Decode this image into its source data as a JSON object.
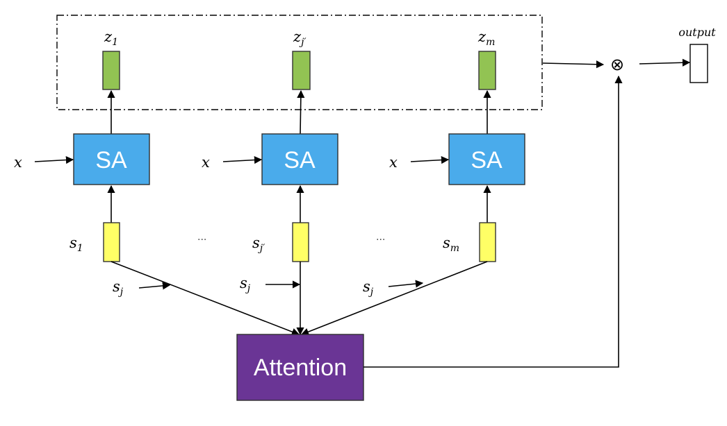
{
  "colors": {
    "sa_box": "#4AABEB",
    "sa_border": "#2F2F2F",
    "z_box": "#92C353",
    "s_box": "#FFFF66",
    "attention_box": "#6A3595",
    "output_box": "#FFFFFF"
  },
  "z_labels": {
    "main": "z",
    "subs": [
      "1",
      "j′",
      "m"
    ]
  },
  "sa_label": "SA",
  "x_label": "x",
  "s_labels": {
    "main": "s",
    "subs": [
      "1",
      "j′",
      "m"
    ]
  },
  "sj_label": {
    "main": "s",
    "sub": "j"
  },
  "ellipsis": "···",
  "attention_label": "Attention",
  "output_label": "output",
  "otimes": "⊗"
}
